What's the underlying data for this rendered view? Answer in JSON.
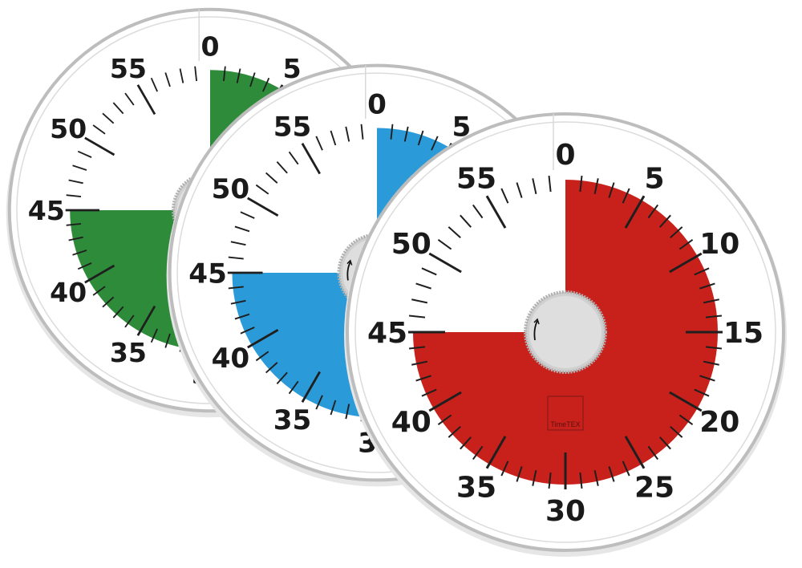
{
  "timers": [
    {
      "name": "green-timer",
      "color": "#2e8b3a",
      "set_minutes": 45,
      "logo": "TimeTEX"
    },
    {
      "name": "blue-timer",
      "color": "#2a9ad8",
      "set_minutes": 45,
      "logo": "TimeTEX"
    },
    {
      "name": "red-timer",
      "color": "#c8201a",
      "set_minutes": 45,
      "logo": "TimeTEX"
    }
  ],
  "dial_labels": [
    "0",
    "5",
    "10",
    "15",
    "20",
    "25",
    "30",
    "35",
    "40",
    "45",
    "50",
    "55"
  ],
  "knob_icon": "rotate-arrow-icon"
}
